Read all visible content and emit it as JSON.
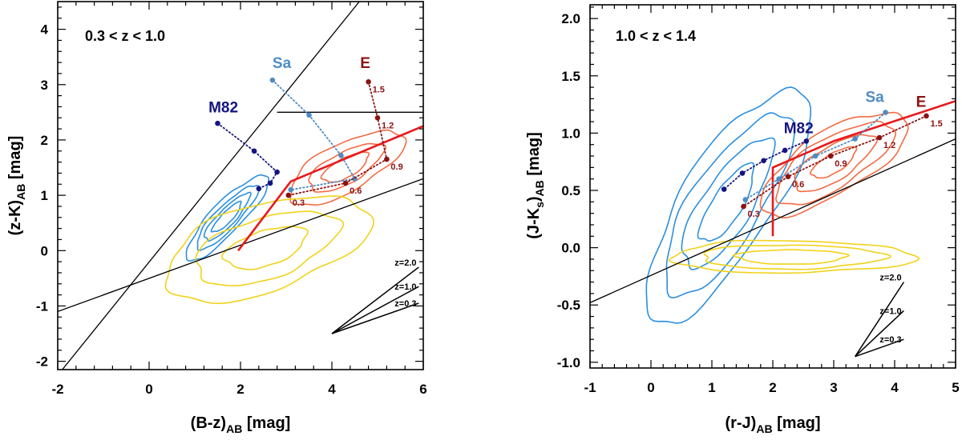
{
  "colors": {
    "star_forming": "#2b8fe0",
    "quiescent": "#f26b43",
    "stars": "#f2d21a",
    "selection": "#e8191b",
    "M82": "#141480",
    "Sa": "#4f8cc2",
    "E": "#8b1212",
    "axes": "#000000"
  },
  "chart_data": [
    {
      "type": "line",
      "title": "0.3 < z < 1.0",
      "xlabel_main": "(B-z)",
      "xlabel_sub": "AB",
      "xlabel_unit": " [mag]",
      "ylabel_main": "(z-K)",
      "ylabel_sub": "AB",
      "ylabel_unit": " [mag]",
      "xlim": [
        -2,
        6
      ],
      "ylim": [
        -2.15,
        4.5
      ],
      "xticks": [
        -2,
        0,
        2,
        4,
        6
      ],
      "xtick_labels": [
        "-2",
        "0",
        "2",
        "4",
        "6"
      ],
      "yticks": [
        -2,
        -1,
        0,
        1,
        2,
        3,
        4
      ],
      "ytick_labels": [
        "-2",
        "-1",
        "0",
        "1",
        "2",
        "3",
        "4"
      ],
      "lines": [
        {
          "name": "",
          "color": "black",
          "points": [
            [
              -1.9,
              -2.15
            ],
            [
              4.6,
              4.5
            ]
          ]
        },
        {
          "name": "",
          "color": "black",
          "points": [
            [
              -2.0,
              -1.1
            ],
            [
              6.0,
              1.3
            ]
          ]
        },
        {
          "name": "",
          "color": "black",
          "points": [
            [
              2.8,
              2.5
            ],
            [
              6.0,
              2.5
            ]
          ]
        },
        {
          "name": "",
          "color": "red",
          "points": [
            [
              1.95,
              0.0
            ],
            [
              3.1,
              1.25
            ],
            [
              6.0,
              2.25
            ]
          ]
        }
      ],
      "tracks": [
        {
          "name": "M82",
          "points": [
            [
              1.5,
              2.3
            ],
            [
              2.3,
              1.8
            ],
            [
              2.8,
              1.42
            ],
            [
              2.65,
              1.22
            ],
            [
              2.4,
              1.12
            ]
          ],
          "label_at": [
            1.3,
            2.5
          ],
          "z_labels": []
        },
        {
          "name": "Sa",
          "points": [
            [
              2.7,
              3.08
            ],
            [
              3.5,
              2.45
            ],
            [
              4.2,
              1.72
            ],
            [
              4.5,
              1.3
            ],
            [
              3.1,
              1.1
            ]
          ],
          "label_at": [
            2.7,
            3.3
          ],
          "z_labels": []
        },
        {
          "name": "E",
          "points": [
            [
              4.8,
              3.05
            ],
            [
              5.0,
              2.4
            ],
            [
              5.2,
              1.65
            ],
            [
              4.3,
              1.22
            ],
            [
              3.05,
              1.0
            ]
          ],
          "label_at": [
            4.62,
            3.3
          ],
          "z_labels": [
            "1.5",
            "1.2",
            "0.9",
            "0.6",
            "0.3"
          ]
        }
      ],
      "contours": [
        {
          "population": "star_forming",
          "center": [
            1.7,
            0.6
          ],
          "semi_axes": [
            1.15,
            0.3,
            0.62,
            0.09,
            0.86,
            0.2,
            0.41,
            0.05
          ],
          "rotation_deg": 40,
          "levels": [
            0.35,
            0.55,
            0.75,
            1.0
          ]
        },
        {
          "population": "quiescent",
          "center": [
            4.3,
            1.5
          ],
          "semi_axes": [
            1.35,
            0.45,
            0.95,
            0.15,
            0.25,
            0.1
          ],
          "rotation_deg": 23,
          "levels": [
            0.4,
            0.65,
            1.0
          ]
        },
        {
          "population": "stars",
          "center": [
            2.55,
            0.05
          ],
          "semi_axes": [
            2.3,
            0.8,
            1.1,
            0.3,
            0.33,
            0.08
          ],
          "rotation_deg": 14,
          "levels": [
            0.4,
            0.7,
            1.0
          ]
        }
      ],
      "reddening_vector": {
        "origin": [
          4.0,
          -1.5
        ],
        "tips": [
          [
            5.9,
            -0.3
          ],
          [
            5.9,
            -0.65
          ],
          [
            5.9,
            -0.95
          ]
        ],
        "labels": [
          "z=2.0",
          "z=1.0",
          "z=0.3"
        ]
      }
    },
    {
      "type": "line",
      "title": "1.0 < z < 1.4",
      "xlabel_main": "(r-J)",
      "xlabel_sub": "AB",
      "xlabel_unit": " [mag]",
      "ylabel_main": "(J-K",
      "ylabel_sub": "s",
      "ylabel_after": ")",
      "ylabel_sub2": "AB",
      "ylabel_unit": " [mag]",
      "xlim": [
        -1,
        5
      ],
      "ylim": [
        -1.05,
        2.12
      ],
      "xticks": [
        -1,
        0,
        1,
        2,
        3,
        4,
        5
      ],
      "xtick_labels": [
        "-1",
        "0",
        "1",
        "2",
        "3",
        "4",
        "5"
      ],
      "yticks": [
        -1.0,
        -0.5,
        0.0,
        0.5,
        1.0,
        1.5,
        2.0
      ],
      "ytick_labels": [
        "-1.0",
        "-0.5",
        "0.0",
        "0.5",
        "1.0",
        "1.5",
        "2.0"
      ],
      "lines": [
        {
          "name": "",
          "color": "black",
          "points": [
            [
              -1.0,
              -0.48
            ],
            [
              5.0,
              0.95
            ]
          ]
        },
        {
          "name": "",
          "color": "red",
          "points": [
            [
              2.0,
              0.1
            ],
            [
              2.0,
              0.7
            ],
            [
              3.0,
              0.93
            ],
            [
              5.0,
              1.28
            ]
          ]
        }
      ],
      "tracks": [
        {
          "name": "M82",
          "points": [
            [
              2.55,
              0.93
            ],
            [
              2.2,
              0.85
            ],
            [
              1.85,
              0.76
            ],
            [
              1.5,
              0.65
            ],
            [
              1.2,
              0.51
            ]
          ],
          "label_at": [
            2.18,
            1.0
          ],
          "z_labels": []
        },
        {
          "name": "Sa",
          "points": [
            [
              3.85,
              1.18
            ],
            [
              3.35,
              0.95
            ],
            [
              2.7,
              0.8
            ],
            [
              2.1,
              0.6
            ],
            [
              1.55,
              0.42
            ]
          ],
          "label_at": [
            3.52,
            1.27
          ],
          "z_labels": []
        },
        {
          "name": "E",
          "points": [
            [
              4.52,
              1.15
            ],
            [
              3.75,
              0.96
            ],
            [
              2.95,
              0.8
            ],
            [
              2.25,
              0.62
            ],
            [
              1.52,
              0.36
            ]
          ],
          "label_at": [
            4.35,
            1.23
          ],
          "z_labels": [
            "1.5",
            "1.2",
            "0.9",
            "0.6",
            "0.3"
          ]
        }
      ],
      "contours": [
        {
          "population": "star_forming",
          "center": [
            1.25,
            0.38
          ],
          "semi_axes": [
            1.6,
            0.55,
            1.05,
            0.33,
            0.62,
            0.17
          ],
          "rotation_deg": 35,
          "levels": [
            0.33,
            0.55,
            0.78,
            1.0
          ]
        },
        {
          "population": "quiescent",
          "center": [
            3.0,
            0.74
          ],
          "semi_axes": [
            1.25,
            0.3,
            0.83,
            0.17,
            0.42,
            0.07
          ],
          "rotation_deg": 16,
          "levels": [
            0.3,
            0.55,
            0.8,
            1.0
          ]
        },
        {
          "population": "stars",
          "center": [
            2.3,
            -0.08
          ],
          "semi_axes": [
            2.0,
            0.14,
            1.35,
            0.09,
            0.7,
            0.04
          ],
          "rotation_deg": 0,
          "levels": [
            0.45,
            0.75,
            1.0
          ]
        }
      ],
      "reddening_vector": {
        "origin": [
          3.35,
          -0.95
        ],
        "tips": [
          [
            4.15,
            -0.3
          ],
          [
            4.15,
            -0.55
          ],
          [
            4.15,
            -0.8
          ]
        ],
        "labels": [
          "z=2.0",
          "z=1.0",
          "z=0.3"
        ]
      }
    }
  ]
}
